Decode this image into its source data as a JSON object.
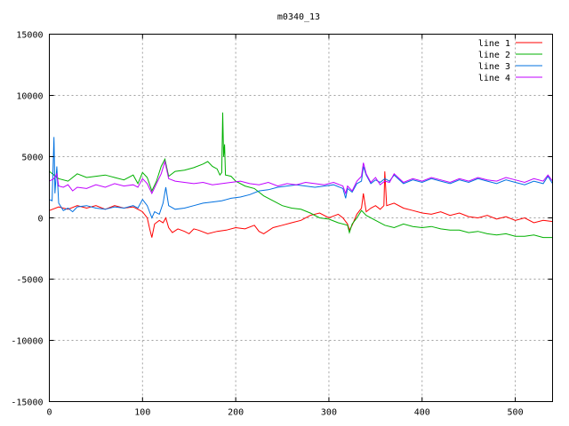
{
  "chart_data": {
    "type": "line",
    "title": "m0340_13",
    "xlabel": "",
    "ylabel": "",
    "xlim": [
      0,
      540
    ],
    "ylim": [
      -15000,
      15000
    ],
    "x_ticks": [
      0,
      100,
      200,
      300,
      400,
      500
    ],
    "y_ticks": [
      -15000,
      -10000,
      -5000,
      0,
      5000,
      10000,
      15000
    ],
    "grid": true,
    "legend_position": "top-right",
    "series": [
      {
        "name": "line 1",
        "color": "#ff0000",
        "points": [
          [
            0,
            600
          ],
          [
            10,
            900
          ],
          [
            20,
            700
          ],
          [
            30,
            1000
          ],
          [
            40,
            800
          ],
          [
            50,
            1000
          ],
          [
            60,
            700
          ],
          [
            70,
            1000
          ],
          [
            80,
            800
          ],
          [
            90,
            900
          ],
          [
            95,
            700
          ],
          [
            100,
            500
          ],
          [
            105,
            0
          ],
          [
            108,
            -1000
          ],
          [
            110,
            -1600
          ],
          [
            113,
            -500
          ],
          [
            118,
            -200
          ],
          [
            122,
            -400
          ],
          [
            125,
            0
          ],
          [
            128,
            -800
          ],
          [
            132,
            -1200
          ],
          [
            138,
            -900
          ],
          [
            145,
            -1100
          ],
          [
            150,
            -1300
          ],
          [
            155,
            -900
          ],
          [
            160,
            -1000
          ],
          [
            170,
            -1300
          ],
          [
            180,
            -1100
          ],
          [
            190,
            -1000
          ],
          [
            200,
            -800
          ],
          [
            210,
            -900
          ],
          [
            220,
            -600
          ],
          [
            225,
            -1100
          ],
          [
            230,
            -1300
          ],
          [
            240,
            -800
          ],
          [
            250,
            -600
          ],
          [
            260,
            -400
          ],
          [
            270,
            -200
          ],
          [
            280,
            200
          ],
          [
            290,
            400
          ],
          [
            300,
            0
          ],
          [
            310,
            300
          ],
          [
            315,
            0
          ],
          [
            320,
            -500
          ],
          [
            322,
            -1000
          ],
          [
            325,
            -600
          ],
          [
            330,
            300
          ],
          [
            335,
            800
          ],
          [
            337,
            2000
          ],
          [
            340,
            500
          ],
          [
            345,
            800
          ],
          [
            350,
            1000
          ],
          [
            355,
            700
          ],
          [
            359,
            1000
          ],
          [
            360,
            3800
          ],
          [
            362,
            1000
          ],
          [
            370,
            1200
          ],
          [
            380,
            800
          ],
          [
            390,
            600
          ],
          [
            400,
            400
          ],
          [
            410,
            300
          ],
          [
            420,
            500
          ],
          [
            430,
            200
          ],
          [
            440,
            400
          ],
          [
            450,
            100
          ],
          [
            460,
            0
          ],
          [
            470,
            200
          ],
          [
            480,
            -100
          ],
          [
            490,
            100
          ],
          [
            500,
            -200
          ],
          [
            510,
            0
          ],
          [
            520,
            -400
          ],
          [
            530,
            -200
          ],
          [
            540,
            -300
          ]
        ]
      },
      {
        "name": "line 2",
        "color": "#00b000",
        "points": [
          [
            0,
            3800
          ],
          [
            5,
            3500
          ],
          [
            10,
            3200
          ],
          [
            20,
            3000
          ],
          [
            30,
            3600
          ],
          [
            40,
            3300
          ],
          [
            50,
            3400
          ],
          [
            60,
            3500
          ],
          [
            70,
            3300
          ],
          [
            80,
            3100
          ],
          [
            90,
            3500
          ],
          [
            95,
            2800
          ],
          [
            100,
            3700
          ],
          [
            105,
            3300
          ],
          [
            110,
            2200
          ],
          [
            115,
            3000
          ],
          [
            120,
            4200
          ],
          [
            124,
            4800
          ],
          [
            128,
            3400
          ],
          [
            135,
            3800
          ],
          [
            145,
            3900
          ],
          [
            155,
            4100
          ],
          [
            165,
            4400
          ],
          [
            170,
            4600
          ],
          [
            175,
            4200
          ],
          [
            180,
            4000
          ],
          [
            183,
            3500
          ],
          [
            185,
            3700
          ],
          [
            186,
            8600
          ],
          [
            187,
            5000
          ],
          [
            188,
            6000
          ],
          [
            189,
            3500
          ],
          [
            195,
            3400
          ],
          [
            200,
            3000
          ],
          [
            210,
            2600
          ],
          [
            220,
            2400
          ],
          [
            230,
            1800
          ],
          [
            240,
            1400
          ],
          [
            250,
            1000
          ],
          [
            260,
            800
          ],
          [
            270,
            700
          ],
          [
            280,
            400
          ],
          [
            290,
            0
          ],
          [
            300,
            -100
          ],
          [
            310,
            -400
          ],
          [
            320,
            -600
          ],
          [
            322,
            -1200
          ],
          [
            325,
            -500
          ],
          [
            330,
            0
          ],
          [
            335,
            600
          ],
          [
            340,
            200
          ],
          [
            350,
            -200
          ],
          [
            360,
            -600
          ],
          [
            370,
            -800
          ],
          [
            380,
            -500
          ],
          [
            390,
            -700
          ],
          [
            400,
            -800
          ],
          [
            410,
            -700
          ],
          [
            420,
            -900
          ],
          [
            430,
            -1000
          ],
          [
            440,
            -1000
          ],
          [
            450,
            -1200
          ],
          [
            460,
            -1100
          ],
          [
            470,
            -1300
          ],
          [
            480,
            -1400
          ],
          [
            490,
            -1300
          ],
          [
            500,
            -1500
          ],
          [
            510,
            -1500
          ],
          [
            520,
            -1400
          ],
          [
            530,
            -1600
          ],
          [
            540,
            -1600
          ]
        ]
      },
      {
        "name": "line 3",
        "color": "#0070e0",
        "points": [
          [
            0,
            1500
          ],
          [
            3,
            1400
          ],
          [
            5,
            6600
          ],
          [
            6,
            2000
          ],
          [
            8,
            4200
          ],
          [
            10,
            1200
          ],
          [
            15,
            600
          ],
          [
            20,
            800
          ],
          [
            25,
            500
          ],
          [
            30,
            900
          ],
          [
            40,
            1000
          ],
          [
            50,
            800
          ],
          [
            60,
            700
          ],
          [
            70,
            900
          ],
          [
            80,
            800
          ],
          [
            90,
            1000
          ],
          [
            95,
            800
          ],
          [
            100,
            1500
          ],
          [
            105,
            1000
          ],
          [
            110,
            0
          ],
          [
            113,
            500
          ],
          [
            118,
            300
          ],
          [
            122,
            1200
          ],
          [
            125,
            2500
          ],
          [
            128,
            1000
          ],
          [
            135,
            700
          ],
          [
            145,
            800
          ],
          [
            155,
            1000
          ],
          [
            165,
            1200
          ],
          [
            175,
            1300
          ],
          [
            185,
            1400
          ],
          [
            195,
            1600
          ],
          [
            205,
            1700
          ],
          [
            215,
            1900
          ],
          [
            225,
            2200
          ],
          [
            235,
            2300
          ],
          [
            245,
            2500
          ],
          [
            255,
            2600
          ],
          [
            265,
            2700
          ],
          [
            275,
            2600
          ],
          [
            285,
            2500
          ],
          [
            295,
            2600
          ],
          [
            305,
            2700
          ],
          [
            315,
            2400
          ],
          [
            318,
            1600
          ],
          [
            320,
            2400
          ],
          [
            325,
            2100
          ],
          [
            330,
            2800
          ],
          [
            335,
            3000
          ],
          [
            337,
            4200
          ],
          [
            340,
            3500
          ],
          [
            345,
            2800
          ],
          [
            350,
            3100
          ],
          [
            355,
            2900
          ],
          [
            360,
            3200
          ],
          [
            365,
            3000
          ],
          [
            370,
            3500
          ],
          [
            380,
            2800
          ],
          [
            390,
            3100
          ],
          [
            400,
            2900
          ],
          [
            410,
            3200
          ],
          [
            420,
            3000
          ],
          [
            430,
            2800
          ],
          [
            440,
            3100
          ],
          [
            450,
            2900
          ],
          [
            460,
            3200
          ],
          [
            470,
            3000
          ],
          [
            480,
            2800
          ],
          [
            490,
            3100
          ],
          [
            500,
            2900
          ],
          [
            510,
            2700
          ],
          [
            520,
            3000
          ],
          [
            530,
            2800
          ],
          [
            535,
            3400
          ],
          [
            540,
            2800
          ]
        ]
      },
      {
        "name": "line 4",
        "color": "#c000ff",
        "points": [
          [
            0,
            3000
          ],
          [
            5,
            3200
          ],
          [
            8,
            3600
          ],
          [
            10,
            2600
          ],
          [
            15,
            2500
          ],
          [
            20,
            2700
          ],
          [
            25,
            2200
          ],
          [
            30,
            2500
          ],
          [
            40,
            2400
          ],
          [
            50,
            2700
          ],
          [
            60,
            2500
          ],
          [
            70,
            2800
          ],
          [
            80,
            2600
          ],
          [
            90,
            2700
          ],
          [
            95,
            2500
          ],
          [
            100,
            3200
          ],
          [
            105,
            2800
          ],
          [
            110,
            2000
          ],
          [
            115,
            2800
          ],
          [
            120,
            3600
          ],
          [
            124,
            4600
          ],
          [
            128,
            3200
          ],
          [
            135,
            3000
          ],
          [
            145,
            2900
          ],
          [
            155,
            2800
          ],
          [
            165,
            2900
          ],
          [
            175,
            2700
          ],
          [
            185,
            2800
          ],
          [
            195,
            2900
          ],
          [
            205,
            3000
          ],
          [
            215,
            2800
          ],
          [
            225,
            2700
          ],
          [
            235,
            2900
          ],
          [
            245,
            2600
          ],
          [
            255,
            2800
          ],
          [
            265,
            2700
          ],
          [
            275,
            2900
          ],
          [
            285,
            2800
          ],
          [
            295,
            2700
          ],
          [
            305,
            2900
          ],
          [
            315,
            2600
          ],
          [
            318,
            2000
          ],
          [
            320,
            2600
          ],
          [
            325,
            2200
          ],
          [
            330,
            3000
          ],
          [
            335,
            3400
          ],
          [
            337,
            4500
          ],
          [
            340,
            3600
          ],
          [
            345,
            2900
          ],
          [
            350,
            3300
          ],
          [
            355,
            2700
          ],
          [
            360,
            3000
          ],
          [
            365,
            2900
          ],
          [
            370,
            3600
          ],
          [
            380,
            2900
          ],
          [
            390,
            3200
          ],
          [
            400,
            3000
          ],
          [
            410,
            3300
          ],
          [
            420,
            3100
          ],
          [
            430,
            2900
          ],
          [
            440,
            3200
          ],
          [
            450,
            3000
          ],
          [
            460,
            3300
          ],
          [
            470,
            3100
          ],
          [
            480,
            3000
          ],
          [
            490,
            3300
          ],
          [
            500,
            3100
          ],
          [
            510,
            2900
          ],
          [
            520,
            3200
          ],
          [
            530,
            3000
          ],
          [
            535,
            3500
          ],
          [
            540,
            3000
          ]
        ]
      }
    ]
  }
}
